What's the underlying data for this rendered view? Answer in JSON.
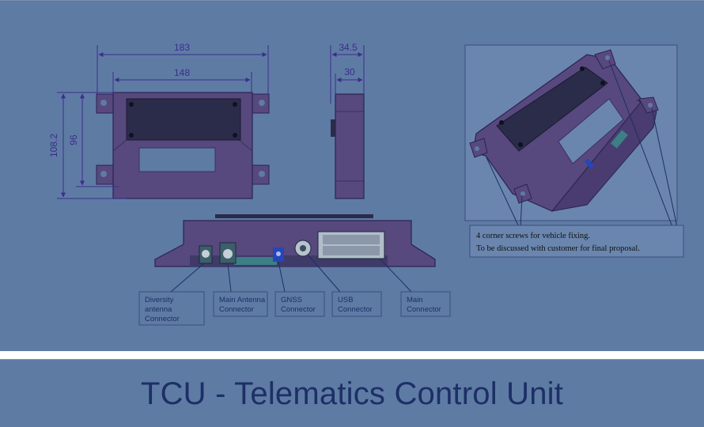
{
  "dimensions": {
    "front_width_outer": "183",
    "front_width_inner": "148",
    "front_height_outer": "108.2",
    "front_height_inner": "96",
    "side_depth_outer": "34.5",
    "side_depth_inner": "30"
  },
  "connectors": [
    [
      "Diversity",
      "antenna",
      "Connector"
    ],
    [
      "Main Antenna",
      "Connector"
    ],
    [
      "GNSS",
      "Connector"
    ],
    [
      "USB",
      "Connector"
    ],
    [
      "Main",
      "Connector"
    ]
  ],
  "mounting_note": {
    "line1": "4 corner screws for vehicle fixing.",
    "line2": "To be discussed with customer for final proposal."
  },
  "title": "TCU - Telematics Control Unit",
  "colors": {
    "background": "#5e7ba4",
    "housing": "#57487e",
    "dimension_lines": "#3d2c8c",
    "title_text": "#1d2f66"
  }
}
